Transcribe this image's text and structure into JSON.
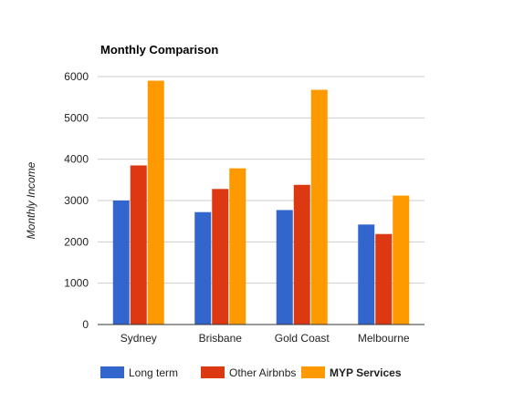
{
  "chart_data": {
    "type": "bar",
    "title": "Monthly Comparison",
    "xlabel": "",
    "ylabel": "Monthly Income",
    "ylim": [
      0,
      6000
    ],
    "yticks": [
      "0",
      "1000",
      "2000",
      "3000",
      "4000",
      "5000",
      "6000"
    ],
    "categories": [
      "Sydney",
      "Brisbane",
      "Gold Coast",
      "Melbourne"
    ],
    "grid": true,
    "legend_position": "bottom",
    "series": [
      {
        "name": "Long term",
        "color": "#3366cc",
        "values": [
          3000,
          2720,
          2770,
          2420
        ]
      },
      {
        "name": "Other Airbnbs",
        "color": "#dc3912",
        "values": [
          3850,
          3280,
          3380,
          2190
        ]
      },
      {
        "name": "MYP Services",
        "color": "#ff9900",
        "values": [
          5900,
          3780,
          5680,
          3120
        ],
        "legend_bold": true
      }
    ]
  }
}
